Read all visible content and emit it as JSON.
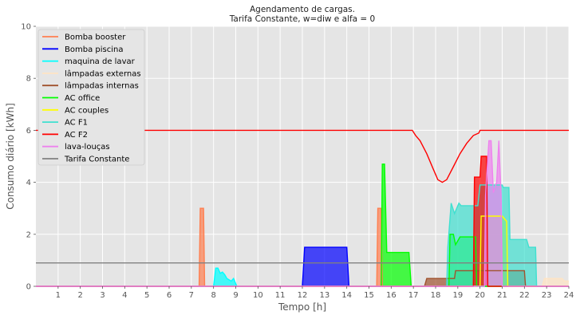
{
  "chart_data": {
    "type": "area",
    "title": "Agendamento de cargas.",
    "subtitle": "Tarifa Constante, w=diw e alfa = 0",
    "xlabel": "Tempo [h]",
    "ylabel": "Consumo diário [kWh]",
    "xlim": [
      0,
      24
    ],
    "ylim": [
      0,
      10
    ],
    "xticks": [
      "1",
      "2",
      "3",
      "4",
      "5",
      "6",
      "7",
      "8",
      "9",
      "10",
      "11",
      "12",
      "13",
      "14",
      "15",
      "16",
      "17",
      "18",
      "19",
      "20",
      "21",
      "22",
      "23",
      "24"
    ],
    "yticks": [
      "0",
      "2",
      "4",
      "6",
      "8",
      "10"
    ],
    "grid": true,
    "legend_position": "top-left",
    "series": [
      {
        "name": "Bomba booster",
        "color": "#ff7f50",
        "fill": true,
        "points": [
          [
            0,
            0
          ],
          [
            7.35,
            0
          ],
          [
            7.4,
            3
          ],
          [
            7.55,
            3
          ],
          [
            7.6,
            0
          ],
          [
            15.35,
            0
          ],
          [
            15.4,
            3
          ],
          [
            15.55,
            3
          ],
          [
            15.6,
            0
          ],
          [
            24,
            0
          ]
        ]
      },
      {
        "name": "Bomba piscina",
        "color": "#0000ff",
        "fill": true,
        "points": [
          [
            0,
            0
          ],
          [
            12,
            0
          ],
          [
            12.1,
            1.5
          ],
          [
            14,
            1.5
          ],
          [
            14.1,
            0
          ],
          [
            24,
            0
          ]
        ]
      },
      {
        "name": "maquina de lavar",
        "color": "#00ffff",
        "fill": true,
        "points": [
          [
            0,
            0
          ],
          [
            8,
            0
          ],
          [
            8.1,
            0.7
          ],
          [
            8.2,
            0.7
          ],
          [
            8.3,
            0.5
          ],
          [
            8.4,
            0.55
          ],
          [
            8.5,
            0.45
          ],
          [
            8.6,
            0.3
          ],
          [
            8.8,
            0.2
          ],
          [
            8.9,
            0.3
          ],
          [
            9,
            0.1
          ],
          [
            9.05,
            0
          ],
          [
            24,
            0
          ]
        ]
      },
      {
        "name": "lâmpadas externas",
        "color": "#ffe4c4",
        "fill": true,
        "points": [
          [
            0,
            0
          ],
          [
            22.8,
            0
          ],
          [
            22.9,
            0.3
          ],
          [
            23.7,
            0.3
          ],
          [
            23.8,
            0.2
          ],
          [
            24,
            0.2
          ]
        ]
      },
      {
        "name": "lâmpadas internas",
        "color": "#a0522d",
        "fill": true,
        "points": [
          [
            0,
            0
          ],
          [
            17.5,
            0
          ],
          [
            17.6,
            0.3
          ],
          [
            18.85,
            0.3
          ],
          [
            18.9,
            0.6
          ],
          [
            22,
            0.6
          ],
          [
            22.05,
            0
          ],
          [
            24,
            0
          ]
        ]
      },
      {
        "name": "AC office",
        "color": "#00ff00",
        "fill": true,
        "points": [
          [
            0,
            0
          ],
          [
            15.55,
            0
          ],
          [
            15.6,
            4.7
          ],
          [
            15.7,
            4.7
          ],
          [
            15.8,
            1.3
          ],
          [
            16.8,
            1.3
          ],
          [
            16.9,
            0
          ],
          [
            18.6,
            0
          ],
          [
            18.65,
            2
          ],
          [
            18.8,
            2
          ],
          [
            18.9,
            1.6
          ],
          [
            19.1,
            1.9
          ],
          [
            19.8,
            1.9
          ],
          [
            19.85,
            0
          ],
          [
            24,
            0
          ]
        ]
      },
      {
        "name": "AC couples",
        "color": "#ffff00",
        "fill": true,
        "points": [
          [
            0,
            0
          ],
          [
            20,
            0
          ],
          [
            20.05,
            2.7
          ],
          [
            21,
            2.7
          ],
          [
            21.2,
            2.5
          ],
          [
            21.25,
            0
          ],
          [
            24,
            0
          ]
        ]
      },
      {
        "name": "AC F1",
        "color": "#40e0d0",
        "fill": true,
        "points": [
          [
            0,
            0
          ],
          [
            18.5,
            0
          ],
          [
            18.55,
            1.5
          ],
          [
            18.7,
            3.2
          ],
          [
            18.85,
            2.8
          ],
          [
            19.05,
            3.2
          ],
          [
            19.15,
            3.1
          ],
          [
            19.9,
            3.1
          ],
          [
            20,
            3.9
          ],
          [
            21,
            3.9
          ],
          [
            21.05,
            3.8
          ],
          [
            21.3,
            3.8
          ],
          [
            21.35,
            1.8
          ],
          [
            22.1,
            1.8
          ],
          [
            22.2,
            1.5
          ],
          [
            22.5,
            1.5
          ],
          [
            22.55,
            0
          ],
          [
            24,
            0
          ]
        ]
      },
      {
        "name": "AC F2",
        "color": "#ff0000",
        "fill": true,
        "points": [
          [
            0,
            0
          ],
          [
            19.7,
            0
          ],
          [
            19.75,
            4.2
          ],
          [
            20,
            4.2
          ],
          [
            20.05,
            5
          ],
          [
            20.3,
            5
          ],
          [
            20.35,
            0
          ],
          [
            24,
            0
          ]
        ]
      },
      {
        "name": "AC F2",
        "color": "#ff0000",
        "fill": false,
        "points": [
          [
            0,
            6
          ],
          [
            16.95,
            6
          ],
          [
            17.1,
            5.8
          ],
          [
            17.3,
            5.6
          ],
          [
            17.6,
            5.1
          ],
          [
            17.9,
            4.5
          ],
          [
            18.1,
            4.1
          ],
          [
            18.3,
            4
          ],
          [
            18.5,
            4.1
          ],
          [
            18.8,
            4.6
          ],
          [
            19.1,
            5.1
          ],
          [
            19.4,
            5.5
          ],
          [
            19.7,
            5.8
          ],
          [
            19.95,
            5.9
          ],
          [
            20,
            6
          ],
          [
            24,
            6
          ]
        ]
      },
      {
        "name": "lava-louças",
        "color": "#ee82ee",
        "fill": true,
        "points": [
          [
            0,
            0
          ],
          [
            20.2,
            0
          ],
          [
            20.25,
            3.5
          ],
          [
            20.4,
            5.6
          ],
          [
            20.5,
            5.6
          ],
          [
            20.6,
            3.6
          ],
          [
            20.75,
            4
          ],
          [
            20.85,
            5.6
          ],
          [
            20.95,
            3.5
          ],
          [
            21,
            0
          ],
          [
            24,
            0
          ]
        ]
      },
      {
        "name": "Tarifa Constante",
        "color": "#808080",
        "fill": false,
        "points": [
          [
            0,
            0.9
          ],
          [
            24,
            0.9
          ]
        ]
      }
    ]
  }
}
